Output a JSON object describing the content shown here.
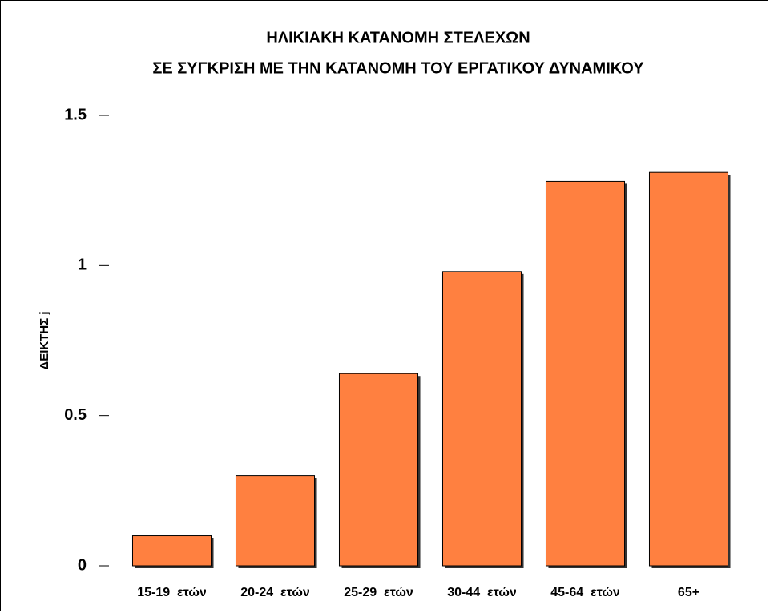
{
  "chart_data": {
    "type": "bar",
    "title": [
      "ΗΛΙΚΙΑΚΗ ΚΑΤΑΝΟΜΗ ΣΤΕΛΕΧΩΝ",
      "ΣΕ ΣΥΓΚΡΙΣΗ ΜΕ ΤΗΝ ΚΑΤΑΝΟΜΗ ΤΟΥ ΕΡΓΑΤΙΚΟΥ ΔΥΝΑΜΙΚΟΥ"
    ],
    "y_label": "ΔΕΙΚΤΗΣ j",
    "categories": [
      "15-19  ετών",
      "20-24  ετών",
      "25-29  ετών",
      "30-44  ετών",
      "45-64  ετών",
      "65+"
    ],
    "values": [
      0.1,
      0.3,
      0.64,
      0.98,
      1.28,
      1.31
    ],
    "color": "#ff8040",
    "ylim": [
      0,
      1.5
    ],
    "yticks": [
      0,
      0.5,
      1,
      1.5
    ],
    "grid": false
  }
}
